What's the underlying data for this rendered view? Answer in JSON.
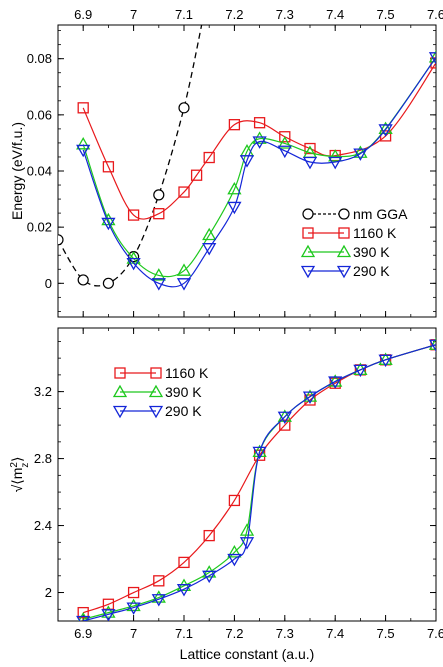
{
  "chart_data": [
    {
      "type": "line",
      "panel": "top",
      "xlim": [
        6.85,
        7.6
      ],
      "ylim": [
        -0.012,
        0.092
      ],
      "xticks": [
        6.9,
        7.0,
        7.1,
        7.2,
        7.3,
        7.4,
        7.5,
        7.6
      ],
      "xtick_labels": [
        "6.9",
        "7",
        "7.1",
        "7.2",
        "7.3",
        "7.4",
        "7.5",
        "7.6"
      ],
      "yticks": [
        0,
        0.02,
        0.04,
        0.06,
        0.08
      ],
      "ytick_labels": [
        "0",
        "0.02",
        "0.04",
        "0.06",
        "0.08"
      ],
      "ylabel": "Energy (eV/f.u.)",
      "legend_position": "right",
      "series": [
        {
          "name": "nm GGA",
          "color": "#000000",
          "marker": "circle",
          "dashed": true,
          "points": [
            [
              6.85,
              0.0155
            ],
            [
              6.9,
              0.0012
            ],
            [
              6.95,
              0.0
            ],
            [
              7.0,
              0.0095
            ],
            [
              7.05,
              0.0315
            ],
            [
              7.1,
              0.0625
            ]
          ],
          "curve_extension": [
            7.135,
            0.092
          ]
        },
        {
          "name": "1160 K",
          "color": "#e8191c",
          "marker": "square",
          "dashed": false,
          "points": [
            [
              6.9,
              0.0625
            ],
            [
              6.95,
              0.0415
            ],
            [
              7.0,
              0.0243
            ],
            [
              7.05,
              0.0248
            ],
            [
              7.1,
              0.0325
            ],
            [
              7.125,
              0.0385
            ],
            [
              7.15,
              0.0448
            ],
            [
              7.2,
              0.0565
            ],
            [
              7.25,
              0.0572
            ],
            [
              7.3,
              0.0522
            ],
            [
              7.35,
              0.048
            ],
            [
              7.4,
              0.0455
            ],
            [
              7.5,
              0.0525
            ],
            [
              7.6,
              0.0785
            ]
          ]
        },
        {
          "name": "390 K",
          "color": "#1ec81e",
          "marker": "triangle-up",
          "dashed": false,
          "points": [
            [
              6.9,
              0.0495
            ],
            [
              6.95,
              0.0225
            ],
            [
              7.0,
              0.0088
            ],
            [
              7.05,
              0.0028
            ],
            [
              7.1,
              0.0045
            ],
            [
              7.15,
              0.0172
            ],
            [
              7.2,
              0.0335
            ],
            [
              7.225,
              0.047
            ],
            [
              7.25,
              0.0515
            ],
            [
              7.3,
              0.0498
            ],
            [
              7.35,
              0.0465
            ],
            [
              7.4,
              0.0452
            ],
            [
              7.45,
              0.0465
            ],
            [
              7.5,
              0.055
            ],
            [
              7.6,
              0.0805
            ]
          ]
        },
        {
          "name": "290 K",
          "color": "#1426d8",
          "marker": "triangle-down",
          "dashed": false,
          "points": [
            [
              6.9,
              0.0475
            ],
            [
              6.95,
              0.0215
            ],
            [
              7.0,
              0.0072
            ],
            [
              7.05,
              0.0
            ],
            [
              7.1,
              0.0
            ],
            [
              7.15,
              0.0125
            ],
            [
              7.2,
              0.0272
            ],
            [
              7.225,
              0.0438
            ],
            [
              7.25,
              0.0505
            ],
            [
              7.3,
              0.0472
            ],
            [
              7.35,
              0.0432
            ],
            [
              7.4,
              0.0432
            ],
            [
              7.45,
              0.0462
            ],
            [
              7.5,
              0.0548
            ],
            [
              7.6,
              0.0805
            ]
          ]
        }
      ]
    },
    {
      "type": "line",
      "panel": "bottom",
      "xlim": [
        6.85,
        7.6
      ],
      "ylim": [
        1.83,
        3.58
      ],
      "xticks": [
        6.9,
        7.0,
        7.1,
        7.2,
        7.3,
        7.4,
        7.5,
        7.6
      ],
      "xtick_labels": [
        "6.9",
        "7",
        "7.1",
        "7.2",
        "7.3",
        "7.4",
        "7.5",
        "7.6"
      ],
      "yticks": [
        2.0,
        2.4,
        2.8,
        3.2
      ],
      "ytick_labels": [
        "2",
        "2.4",
        "2.8",
        "3.2"
      ],
      "xlabel": "Lattice constant (a.u.)",
      "ylabel": "√⟨m_z^2⟩",
      "legend_position": "top-left",
      "series": [
        {
          "name": "1160 K",
          "color": "#e8191c",
          "marker": "square",
          "points": [
            [
              6.9,
              1.88
            ],
            [
              6.95,
              1.93
            ],
            [
              7.0,
              2.0
            ],
            [
              7.05,
              2.07
            ],
            [
              7.1,
              2.18
            ],
            [
              7.15,
              2.34
            ],
            [
              7.2,
              2.55
            ],
            [
              7.25,
              2.82
            ],
            [
              7.3,
              3.0
            ],
            [
              7.35,
              3.15
            ],
            [
              7.4,
              3.25
            ],
            [
              7.45,
              3.33
            ],
            [
              7.5,
              3.39
            ],
            [
              7.6,
              3.48
            ]
          ]
        },
        {
          "name": "390 K",
          "color": "#1ec81e",
          "marker": "triangle-up",
          "points": [
            [
              6.9,
              1.84
            ],
            [
              6.95,
              1.88
            ],
            [
              7.0,
              1.92
            ],
            [
              7.05,
              1.97
            ],
            [
              7.1,
              2.04
            ],
            [
              7.15,
              2.12
            ],
            [
              7.2,
              2.24
            ],
            [
              7.225,
              2.37
            ],
            [
              7.25,
              2.84
            ],
            [
              7.3,
              3.05
            ],
            [
              7.35,
              3.17
            ],
            [
              7.4,
              3.26
            ],
            [
              7.45,
              3.33
            ],
            [
              7.5,
              3.39
            ],
            [
              7.6,
              3.48
            ]
          ]
        },
        {
          "name": "290 K",
          "color": "#1426d8",
          "marker": "triangle-down",
          "points": [
            [
              6.9,
              1.83
            ],
            [
              6.95,
              1.87
            ],
            [
              7.0,
              1.91
            ],
            [
              7.05,
              1.96
            ],
            [
              7.1,
              2.02
            ],
            [
              7.15,
              2.1
            ],
            [
              7.2,
              2.2
            ],
            [
              7.225,
              2.3
            ],
            [
              7.25,
              2.84
            ],
            [
              7.3,
              3.05
            ],
            [
              7.35,
              3.17
            ],
            [
              7.4,
              3.26
            ],
            [
              7.45,
              3.33
            ],
            [
              7.5,
              3.39
            ],
            [
              7.6,
              3.48
            ]
          ]
        }
      ]
    }
  ]
}
